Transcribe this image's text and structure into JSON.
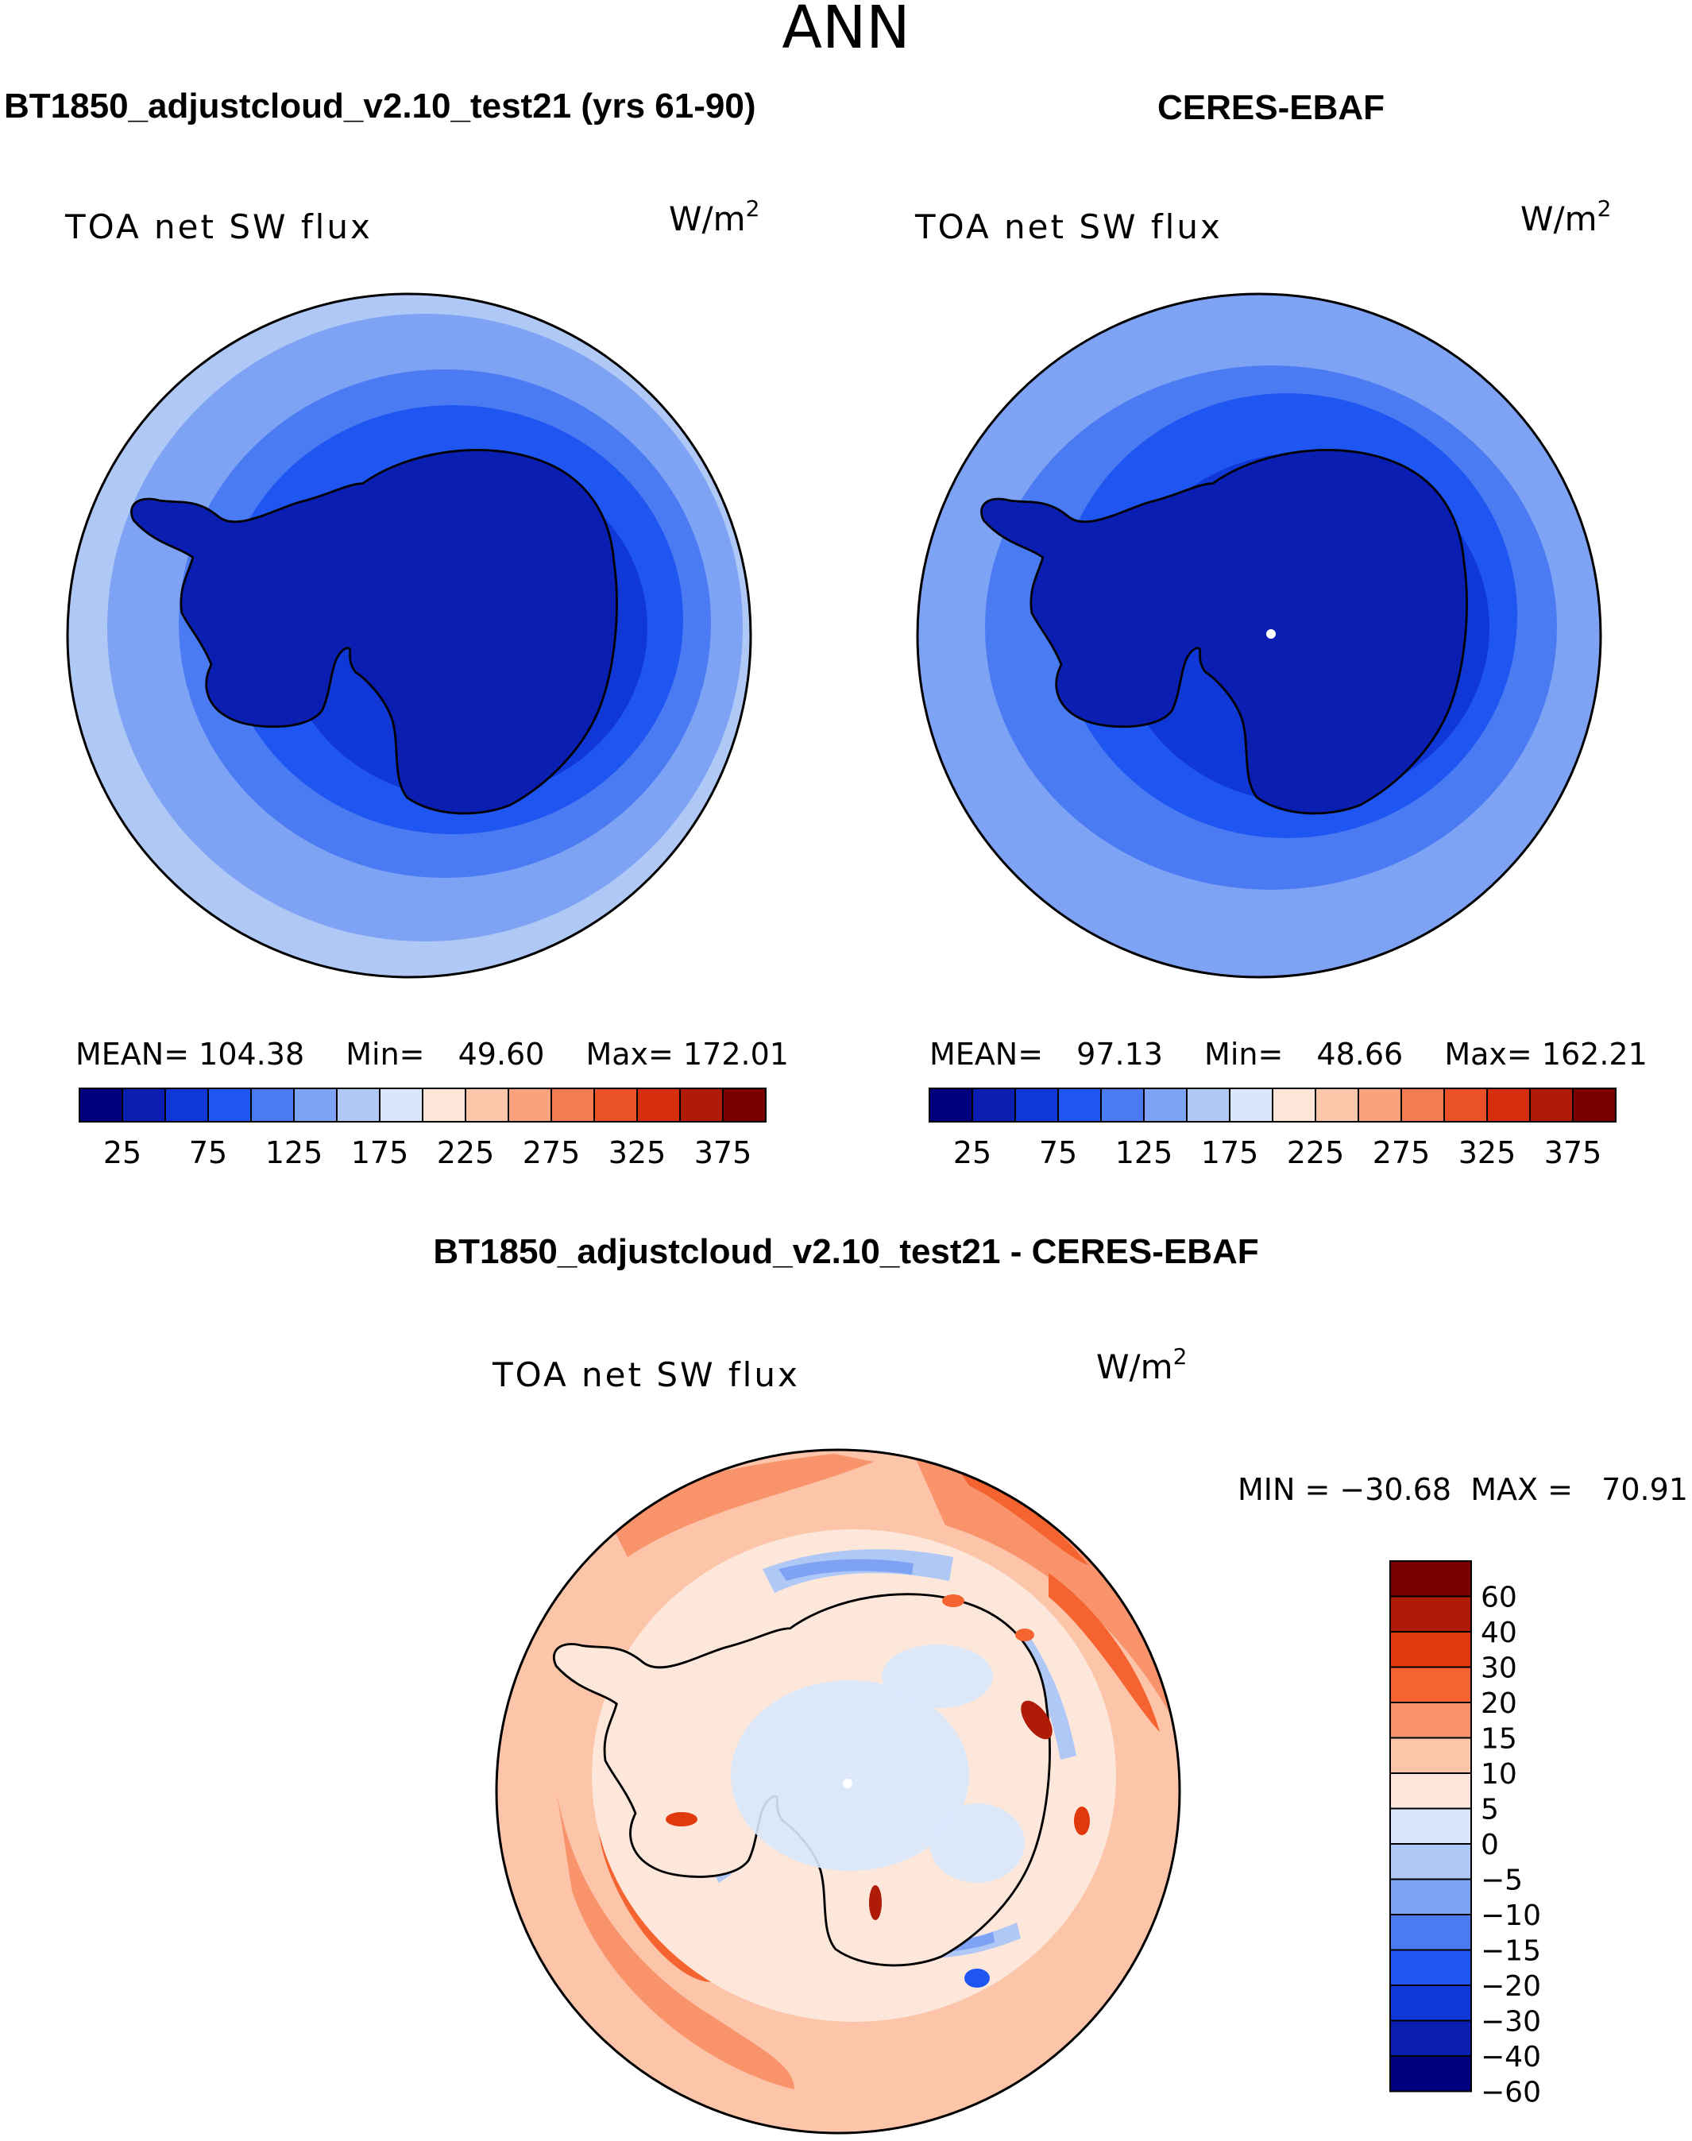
{
  "season": "ANN",
  "panels": [
    {
      "header": "BT1850_adjustcloud_v2.10_test21 (yrs 61-90)",
      "variable": "TOA net SW flux",
      "units_base": "W/m",
      "units_exp": "2",
      "mean_label": "MEAN=",
      "mean": "104.38",
      "min_label": "Min=",
      "min": "49.60",
      "max_label": "Max=",
      "max": "172.01"
    },
    {
      "header": "CERES-EBAF",
      "variable": "TOA net SW flux",
      "units_base": "W/m",
      "units_exp": "2",
      "mean_label": "MEAN=",
      "mean": "97.13",
      "min_label": "Min=",
      "min": "48.66",
      "max_label": "Max=",
      "max": "162.21"
    }
  ],
  "diff": {
    "header": "BT1850_adjustcloud_v2.10_test21 - CERES-EBAF",
    "variable": "TOA net SW flux",
    "units_base": "W/m",
    "units_exp": "2",
    "minmax": "MIN = −30.68  MAX =   70.91"
  },
  "colorbar_h": {
    "colors": [
      "#00007f",
      "#0a1fb2",
      "#0f38d6",
      "#1f55f0",
      "#4a7bf2",
      "#7ea2f4",
      "#b0c8f6",
      "#d8e8fa",
      "#fde6d8",
      "#fcc6aa",
      "#f9a27c",
      "#f47c50",
      "#ea5128",
      "#d52f10",
      "#b01b07",
      "#7a0000"
    ],
    "labels": [
      "25",
      "75",
      "125",
      "175",
      "225",
      "275",
      "325",
      "375"
    ]
  },
  "colorbar_v": {
    "colors": [
      "#7a0000",
      "#b01b07",
      "#e03a0c",
      "#f46330",
      "#f8936b",
      "#fcc4a8",
      "#fde7da",
      "#d8e8fa",
      "#b0c8f6",
      "#7ea2f4",
      "#4a7bf2",
      "#1f55f0",
      "#0f38d6",
      "#0a1fb2",
      "#00007f"
    ],
    "labels": [
      "60",
      "40",
      "30",
      "20",
      "15",
      "10",
      "5",
      "0",
      "−5",
      "−10",
      "−15",
      "−20",
      "−30",
      "−40",
      "−60"
    ]
  }
}
